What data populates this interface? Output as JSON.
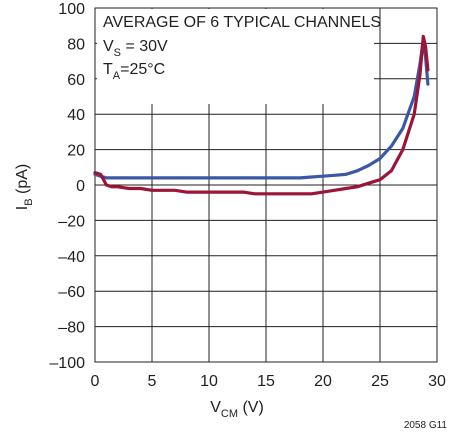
{
  "chart_data": {
    "type": "line",
    "xlabel": {
      "main": "V",
      "sub": "CM",
      "unit": " (V)"
    },
    "ylabel": {
      "main": "I",
      "sub": "B",
      "unit": " (pA)"
    },
    "xlim": [
      0,
      30
    ],
    "ylim": [
      -100,
      100
    ],
    "xticks": [
      0,
      5,
      10,
      15,
      20,
      25,
      30
    ],
    "xtick_labels": [
      "0",
      "5",
      "10",
      "15",
      "20",
      "25",
      "30"
    ],
    "yticks": [
      100,
      80,
      60,
      40,
      20,
      0,
      -20,
      -40,
      -60,
      -80,
      -100
    ],
    "ytick_labels": [
      "100",
      "80",
      "60",
      "40",
      "20",
      "0",
      "–20",
      "–40",
      "–60",
      "–80",
      "–100"
    ],
    "grid": true,
    "annotation": {
      "line1": "AVERAGE OF 6 TYPICAL CHANNELS",
      "line2": {
        "main": "V",
        "sub": "S",
        "rest": " = 30V"
      },
      "line3": {
        "main": "T",
        "sub": "A",
        "rest": "=25°C"
      }
    },
    "figure_id": "2058 G11",
    "colors": {
      "series_blue": "#3a58a6",
      "series_red": "#9a1537",
      "axis": "#231f20"
    },
    "series": [
      {
        "color": "#3a58a6",
        "points": [
          [
            0,
            6
          ],
          [
            0.5,
            5
          ],
          [
            1,
            4
          ],
          [
            2,
            4
          ],
          [
            3,
            4
          ],
          [
            4,
            4
          ],
          [
            5,
            4
          ],
          [
            6,
            4
          ],
          [
            7,
            4
          ],
          [
            8,
            4
          ],
          [
            9,
            4
          ],
          [
            10,
            4
          ],
          [
            11,
            4
          ],
          [
            12,
            4
          ],
          [
            13,
            4
          ],
          [
            14,
            4
          ],
          [
            15,
            4
          ],
          [
            16,
            4
          ],
          [
            17,
            4
          ],
          [
            18,
            4
          ],
          [
            19,
            4.5
          ],
          [
            20,
            5
          ],
          [
            21,
            5.5
          ],
          [
            22,
            6
          ],
          [
            23,
            8
          ],
          [
            24,
            11
          ],
          [
            25,
            15
          ],
          [
            26,
            22
          ],
          [
            27,
            32
          ],
          [
            28,
            50
          ],
          [
            28.5,
            68
          ],
          [
            28.8,
            82
          ],
          [
            29,
            72
          ],
          [
            29.2,
            57
          ]
        ]
      },
      {
        "color": "#9a1537",
        "points": [
          [
            0,
            7
          ],
          [
            0.5,
            6
          ],
          [
            1,
            0
          ],
          [
            1.5,
            -1
          ],
          [
            2,
            -1
          ],
          [
            3,
            -2
          ],
          [
            4,
            -2
          ],
          [
            5,
            -3
          ],
          [
            6,
            -3
          ],
          [
            7,
            -3
          ],
          [
            8,
            -4
          ],
          [
            9,
            -4
          ],
          [
            10,
            -4
          ],
          [
            11,
            -4
          ],
          [
            12,
            -4
          ],
          [
            13,
            -4
          ],
          [
            14,
            -5
          ],
          [
            15,
            -5
          ],
          [
            16,
            -5
          ],
          [
            17,
            -5
          ],
          [
            18,
            -5
          ],
          [
            19,
            -5
          ],
          [
            20,
            -4
          ],
          [
            21,
            -3
          ],
          [
            22,
            -2
          ],
          [
            23,
            -1
          ],
          [
            24,
            1
          ],
          [
            25,
            3
          ],
          [
            26,
            8
          ],
          [
            27,
            20
          ],
          [
            28,
            40
          ],
          [
            28.5,
            62
          ],
          [
            28.8,
            84
          ],
          [
            29,
            78
          ],
          [
            29.2,
            65
          ]
        ]
      }
    ]
  }
}
